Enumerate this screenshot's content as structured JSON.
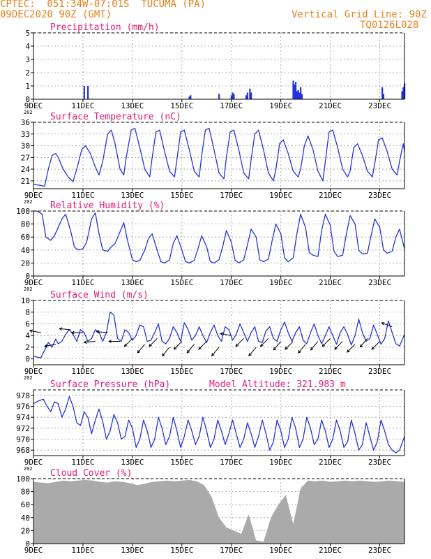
{
  "header": {
    "station": "CPTEC:  051:34W-07:01S  TUCUMA (PA)",
    "run": "09DEC2020 90Z (GMT)",
    "grid_note": "Vertical Grid Line: 90Z",
    "code": "TQ0126L028"
  },
  "colors": {
    "header": "#e6821e",
    "title": "#e6197a",
    "series": "#2233dd",
    "cloud": "#aaaaaa",
    "wind_arrow": "#000000"
  },
  "chart_data": [
    {
      "id": "precip",
      "type": "bar",
      "title": "Precipitation (mm/h)",
      "ylim": [
        0,
        5
      ],
      "yticks": [
        0,
        1,
        2,
        3,
        4,
        5
      ],
      "x": [
        2.05,
        2.2,
        6.3,
        6.35,
        7.5,
        8.0,
        8.05,
        8.1,
        8.6,
        8.65,
        8.75,
        8.8,
        10.5,
        10.55,
        10.6,
        10.65,
        10.7,
        10.75,
        10.8,
        10.85,
        14.1,
        14.15,
        14.9,
        14.95,
        15.0
      ],
      "values": [
        1.0,
        1.0,
        0.2,
        0.3,
        0.4,
        0.3,
        0.5,
        0.4,
        0.3,
        0.5,
        0.8,
        0.5,
        1.4,
        1.1,
        1.3,
        0.6,
        0.7,
        0.5,
        0.9,
        0.4,
        0.9,
        0.4,
        0.6,
        0.9,
        1.2
      ]
    },
    {
      "id": "temp",
      "type": "line",
      "title": "Surface Temperature (nC)",
      "ylim": [
        19,
        36
      ],
      "yticks": [
        21,
        24,
        27,
        30,
        33,
        36
      ],
      "x": [
        0,
        0.1,
        0.3,
        0.45,
        0.6,
        0.75,
        0.9,
        1.0,
        1.2,
        1.4,
        1.6,
        1.75,
        1.95,
        2.1,
        2.3,
        2.5,
        2.65,
        2.8,
        3.0,
        3.15,
        3.3,
        3.5,
        3.65,
        3.75,
        3.95,
        4.1,
        4.3,
        4.5,
        4.7,
        4.8,
        4.95,
        5.1,
        5.3,
        5.5,
        5.7,
        5.8,
        5.95,
        6.1,
        6.3,
        6.5,
        6.7,
        6.8,
        6.95,
        7.1,
        7.3,
        7.5,
        7.7,
        7.8,
        7.95,
        8.1,
        8.3,
        8.5,
        8.7,
        8.8,
        8.95,
        9.1,
        9.3,
        9.5,
        9.7,
        9.8,
        9.95,
        10.1,
        10.3,
        10.5,
        10.7,
        10.8,
        10.95,
        11.1,
        11.3,
        11.5,
        11.7,
        11.8,
        11.95,
        12.1,
        12.3,
        12.5,
        12.7,
        12.8,
        12.95,
        13.1,
        13.3,
        13.5,
        13.7,
        13.8,
        13.95,
        14.1,
        14.3,
        14.5,
        14.7,
        14.8,
        14.95,
        15.0
      ],
      "values": [
        20.2,
        20.0,
        19.8,
        19.6,
        24.0,
        27.5,
        28.0,
        27.0,
        24.0,
        22.0,
        20.8,
        24.0,
        29.0,
        30.0,
        28.0,
        24.5,
        22.5,
        26.0,
        33.0,
        34.0,
        30.5,
        24.0,
        22.5,
        27.0,
        34.0,
        34.5,
        29.5,
        24.0,
        22.0,
        27.0,
        33.5,
        34.0,
        28.5,
        23.5,
        22.0,
        26.5,
        33.5,
        34.0,
        29.0,
        23.5,
        22.0,
        27.5,
        34.0,
        34.5,
        29.0,
        23.0,
        21.5,
        27.0,
        33.5,
        34.0,
        29.0,
        23.0,
        21.5,
        26.5,
        33.0,
        34.0,
        29.0,
        23.0,
        21.0,
        24.0,
        30.5,
        31.5,
        28.0,
        23.5,
        22.0,
        24.0,
        30.0,
        32.5,
        29.0,
        23.5,
        21.0,
        26.0,
        33.5,
        34.0,
        29.5,
        24.0,
        22.0,
        23.5,
        29.5,
        30.5,
        27.5,
        23.5,
        22.0,
        25.5,
        31.5,
        32.0,
        28.5,
        24.0,
        22.5,
        26.0,
        30.5,
        28.5
      ]
    },
    {
      "id": "rh",
      "type": "line",
      "title": "Relative Humidity (%)",
      "ylim": [
        0,
        100
      ],
      "yticks": [
        0,
        20,
        40,
        60,
        80,
        100
      ],
      "x": [
        0,
        0.15,
        0.35,
        0.5,
        0.7,
        0.85,
        1.0,
        1.15,
        1.3,
        1.5,
        1.65,
        1.8,
        2.0,
        2.15,
        2.35,
        2.5,
        2.65,
        2.8,
        3.0,
        3.15,
        3.3,
        3.5,
        3.65,
        3.8,
        4.0,
        4.15,
        4.3,
        4.5,
        4.65,
        4.8,
        5.0,
        5.15,
        5.3,
        5.5,
        5.65,
        5.8,
        6.0,
        6.15,
        6.3,
        6.5,
        6.65,
        6.8,
        7.0,
        7.15,
        7.3,
        7.5,
        7.65,
        7.8,
        8.0,
        8.15,
        8.3,
        8.5,
        8.65,
        8.8,
        9.0,
        9.15,
        9.3,
        9.5,
        9.65,
        9.8,
        10.0,
        10.15,
        10.3,
        10.5,
        10.65,
        10.8,
        11.0,
        11.15,
        11.3,
        11.5,
        11.65,
        11.8,
        12.0,
        12.15,
        12.3,
        12.5,
        12.65,
        12.8,
        13.0,
        13.15,
        13.3,
        13.5,
        13.65,
        13.8,
        14.0,
        14.15,
        14.3,
        14.5,
        14.65,
        14.8,
        15.0
      ],
      "values": [
        100,
        100,
        95,
        60,
        55,
        62,
        75,
        88,
        95,
        70,
        45,
        40,
        42,
        52,
        88,
        97,
        65,
        40,
        38,
        45,
        50,
        68,
        82,
        55,
        25,
        22,
        24,
        40,
        58,
        65,
        40,
        22,
        20,
        25,
        50,
        62,
        40,
        22,
        20,
        24,
        42,
        62,
        45,
        22,
        20,
        25,
        45,
        70,
        52,
        24,
        20,
        25,
        48,
        72,
        60,
        25,
        22,
        26,
        55,
        80,
        65,
        28,
        22,
        28,
        65,
        95,
        75,
        36,
        32,
        30,
        70,
        95,
        78,
        38,
        30,
        32,
        65,
        93,
        80,
        40,
        34,
        35,
        62,
        88,
        75,
        40,
        35,
        38,
        60,
        72,
        42
      ]
    },
    {
      "id": "wind",
      "type": "line",
      "title": "Surface Wind (m/s)",
      "ylim": [
        -1,
        10
      ],
      "yticks": [
        0,
        2,
        4,
        6,
        8,
        10
      ],
      "x": [
        0,
        0.15,
        0.3,
        0.45,
        0.6,
        0.75,
        0.9,
        1.0,
        1.15,
        1.3,
        1.45,
        1.6,
        1.75,
        1.9,
        2.05,
        2.2,
        2.35,
        2.5,
        2.65,
        2.8,
        2.95,
        3.1,
        3.25,
        3.4,
        3.55,
        3.7,
        3.85,
        4.0,
        4.15,
        4.3,
        4.45,
        4.6,
        4.75,
        4.9,
        5.05,
        5.2,
        5.35,
        5.5,
        5.65,
        5.8,
        5.95,
        6.1,
        6.25,
        6.4,
        6.55,
        6.7,
        6.85,
        7.0,
        7.15,
        7.3,
        7.45,
        7.6,
        7.75,
        7.9,
        8.05,
        8.2,
        8.35,
        8.5,
        8.65,
        8.8,
        8.95,
        9.1,
        9.25,
        9.4,
        9.55,
        9.7,
        9.85,
        10.0,
        10.15,
        10.3,
        10.45,
        10.6,
        10.75,
        10.9,
        11.05,
        11.2,
        11.35,
        11.5,
        11.65,
        11.8,
        11.95,
        12.1,
        12.25,
        12.4,
        12.55,
        12.7,
        12.85,
        13.0,
        13.15,
        13.3,
        13.45,
        13.6,
        13.75,
        13.9,
        14.05,
        14.2,
        14.35,
        14.5,
        14.65,
        14.8,
        15.0
      ],
      "values": [
        0.5,
        0.3,
        0.2,
        1.5,
        2.8,
        2.0,
        3.4,
        2.6,
        3.0,
        4.2,
        5.0,
        4.2,
        3.0,
        5.0,
        4.5,
        3.0,
        3.5,
        5.0,
        4.6,
        3.0,
        4.5,
        8.0,
        7.5,
        3.5,
        3.0,
        5.0,
        4.5,
        3.2,
        4.0,
        5.8,
        5.5,
        3.0,
        3.2,
        4.5,
        6.0,
        3.0,
        2.6,
        3.5,
        5.5,
        4.5,
        3.0,
        6.2,
        5.0,
        3.2,
        4.0,
        5.5,
        4.0,
        2.8,
        4.5,
        5.8,
        4.0,
        3.0,
        5.5,
        5.0,
        3.2,
        4.2,
        6.0,
        4.5,
        3.0,
        4.5,
        5.5,
        3.0,
        2.8,
        4.8,
        5.5,
        3.5,
        3.0,
        5.0,
        6.3,
        4.5,
        3.0,
        4.5,
        5.5,
        3.2,
        2.6,
        4.5,
        6.0,
        4.0,
        2.6,
        4.0,
        5.5,
        4.0,
        2.5,
        4.5,
        5.5,
        4.2,
        2.4,
        4.0,
        6.8,
        4.5,
        3.0,
        3.5,
        5.8,
        4.2,
        2.5,
        3.5,
        6.5,
        4.5,
        2.6,
        2.2,
        4.2
      ]
    },
    {
      "id": "pressure",
      "type": "line",
      "title": "Surface Pressure (hPa)",
      "note": "Model Altitude: 321.983 m",
      "ylim": [
        967,
        979
      ],
      "yticks": [
        968,
        970,
        972,
        974,
        976,
        978
      ],
      "x": [
        0,
        0.2,
        0.4,
        0.55,
        0.7,
        0.85,
        1.0,
        1.15,
        1.3,
        1.45,
        1.6,
        1.75,
        1.9,
        2.05,
        2.2,
        2.35,
        2.5,
        2.65,
        2.8,
        2.95,
        3.1,
        3.25,
        3.4,
        3.55,
        3.7,
        3.85,
        4.0,
        4.15,
        4.3,
        4.45,
        4.6,
        4.75,
        4.9,
        5.05,
        5.2,
        5.35,
        5.5,
        5.65,
        5.8,
        5.95,
        6.1,
        6.25,
        6.4,
        6.55,
        6.7,
        6.85,
        7.0,
        7.15,
        7.3,
        7.45,
        7.6,
        7.75,
        7.9,
        8.05,
        8.2,
        8.35,
        8.5,
        8.65,
        8.8,
        8.95,
        9.1,
        9.25,
        9.4,
        9.55,
        9.7,
        9.85,
        10.0,
        10.15,
        10.3,
        10.45,
        10.6,
        10.75,
        10.9,
        11.05,
        11.2,
        11.35,
        11.5,
        11.65,
        11.8,
        11.95,
        12.1,
        12.25,
        12.4,
        12.55,
        12.7,
        12.85,
        13.0,
        13.15,
        13.3,
        13.45,
        13.6,
        13.75,
        13.9,
        14.05,
        14.2,
        14.35,
        14.5,
        14.65,
        14.8,
        15.0
      ],
      "values": [
        976.5,
        977.0,
        977.3,
        976.0,
        975.0,
        976.8,
        976.5,
        974.0,
        975.5,
        977.8,
        976.0,
        973.0,
        972.5,
        975.0,
        974.0,
        971.0,
        973.5,
        975.5,
        973.2,
        970.0,
        971.5,
        974.5,
        973.0,
        970.0,
        970.5,
        973.5,
        972.0,
        968.5,
        970.0,
        973.5,
        971.5,
        968.5,
        970.0,
        974.0,
        972.0,
        969.0,
        970.5,
        974.0,
        971.5,
        968.5,
        970.5,
        973.5,
        971.5,
        969.0,
        970.5,
        974.0,
        971.5,
        968.5,
        970.0,
        973.5,
        971.5,
        969.0,
        971.0,
        973.5,
        971.0,
        968.5,
        970.0,
        973.0,
        971.0,
        968.5,
        970.5,
        973.5,
        971.0,
        968.0,
        969.5,
        973.5,
        971.5,
        968.5,
        970.0,
        974.0,
        972.0,
        968.5,
        970.0,
        974.0,
        972.0,
        969.0,
        970.0,
        973.5,
        971.5,
        968.5,
        970.0,
        973.5,
        971.5,
        968.5,
        969.5,
        973.5,
        971.0,
        968.0,
        969.0,
        973.0,
        970.5,
        968.0,
        969.5,
        973.5,
        971.5,
        969.0,
        968.0,
        967.5,
        968.0,
        970.5
      ]
    },
    {
      "id": "cloud",
      "type": "area",
      "title": "Cloud Cover (%)",
      "ylim": [
        0,
        100
      ],
      "yticks": [
        0,
        20,
        40,
        60,
        80,
        100
      ],
      "x": [
        0,
        0.3,
        0.6,
        0.9,
        1.2,
        1.5,
        1.8,
        2.1,
        2.4,
        2.7,
        3.0,
        3.3,
        3.6,
        3.9,
        4.2,
        4.5,
        4.8,
        5.1,
        5.4,
        5.7,
        6.0,
        6.3,
        6.6,
        6.9,
        7.2,
        7.5,
        7.8,
        8.1,
        8.4,
        8.7,
        9.0,
        9.3,
        9.6,
        9.9,
        10.2,
        10.5,
        10.8,
        11.1,
        11.4,
        11.7,
        12.0,
        12.3,
        12.6,
        12.9,
        13.2,
        13.5,
        13.8,
        14.1,
        14.4,
        14.7,
        15.0
      ],
      "values": [
        95,
        94,
        93,
        95,
        97,
        96,
        97,
        98,
        97,
        95,
        94,
        96,
        95,
        93,
        90,
        92,
        95,
        96,
        97,
        96,
        97,
        98,
        96,
        90,
        72,
        40,
        25,
        20,
        15,
        45,
        5,
        3,
        40,
        60,
        75,
        30,
        85,
        97,
        96,
        97,
        95,
        96,
        97,
        96,
        97,
        96,
        95,
        96,
        97,
        96,
        95
      ]
    }
  ],
  "wind_arrows": {
    "x": [
      0.3,
      0.9,
      1.5,
      2.0,
      2.5,
      3.0,
      3.5,
      4.0,
      4.5,
      5.0,
      5.5,
      6.0,
      6.5,
      7.0,
      7.5,
      8.0,
      8.5,
      9.0,
      9.5,
      10.0,
      10.5,
      11.0,
      11.5,
      12.0,
      12.5,
      13.0,
      13.5,
      14.0,
      14.5
    ],
    "dir_deg": [
      100,
      80,
      95,
      90,
      85,
      95,
      90,
      45,
      40,
      45,
      40,
      45,
      40,
      45,
      40,
      100,
      45,
      40,
      45,
      40,
      45,
      40,
      40,
      45,
      45,
      45,
      40,
      45,
      110
    ],
    "y": [
      4.5,
      2.5,
      5.0,
      4.5,
      3.0,
      4.5,
      3.0,
      3.5,
      2.5,
      3.5,
      2.0,
      3.0,
      2.5,
      3.0,
      2.0,
      4.0,
      3.5,
      2.0,
      3.5,
      3.0,
      3.0,
      2.5,
      3.0,
      3.5,
      3.0,
      2.5,
      3.5,
      3.0,
      5.5
    ]
  },
  "x_axis": {
    "ticks": [
      0,
      2,
      4,
      6,
      8,
      10,
      12,
      14
    ],
    "labels": [
      "9DEC",
      "11DEC",
      "13DEC",
      "15DEC",
      "17DEC",
      "19DEC",
      "21DEC",
      "23DEC"
    ],
    "year_stub": "202",
    "range": [
      0,
      15
    ]
  }
}
